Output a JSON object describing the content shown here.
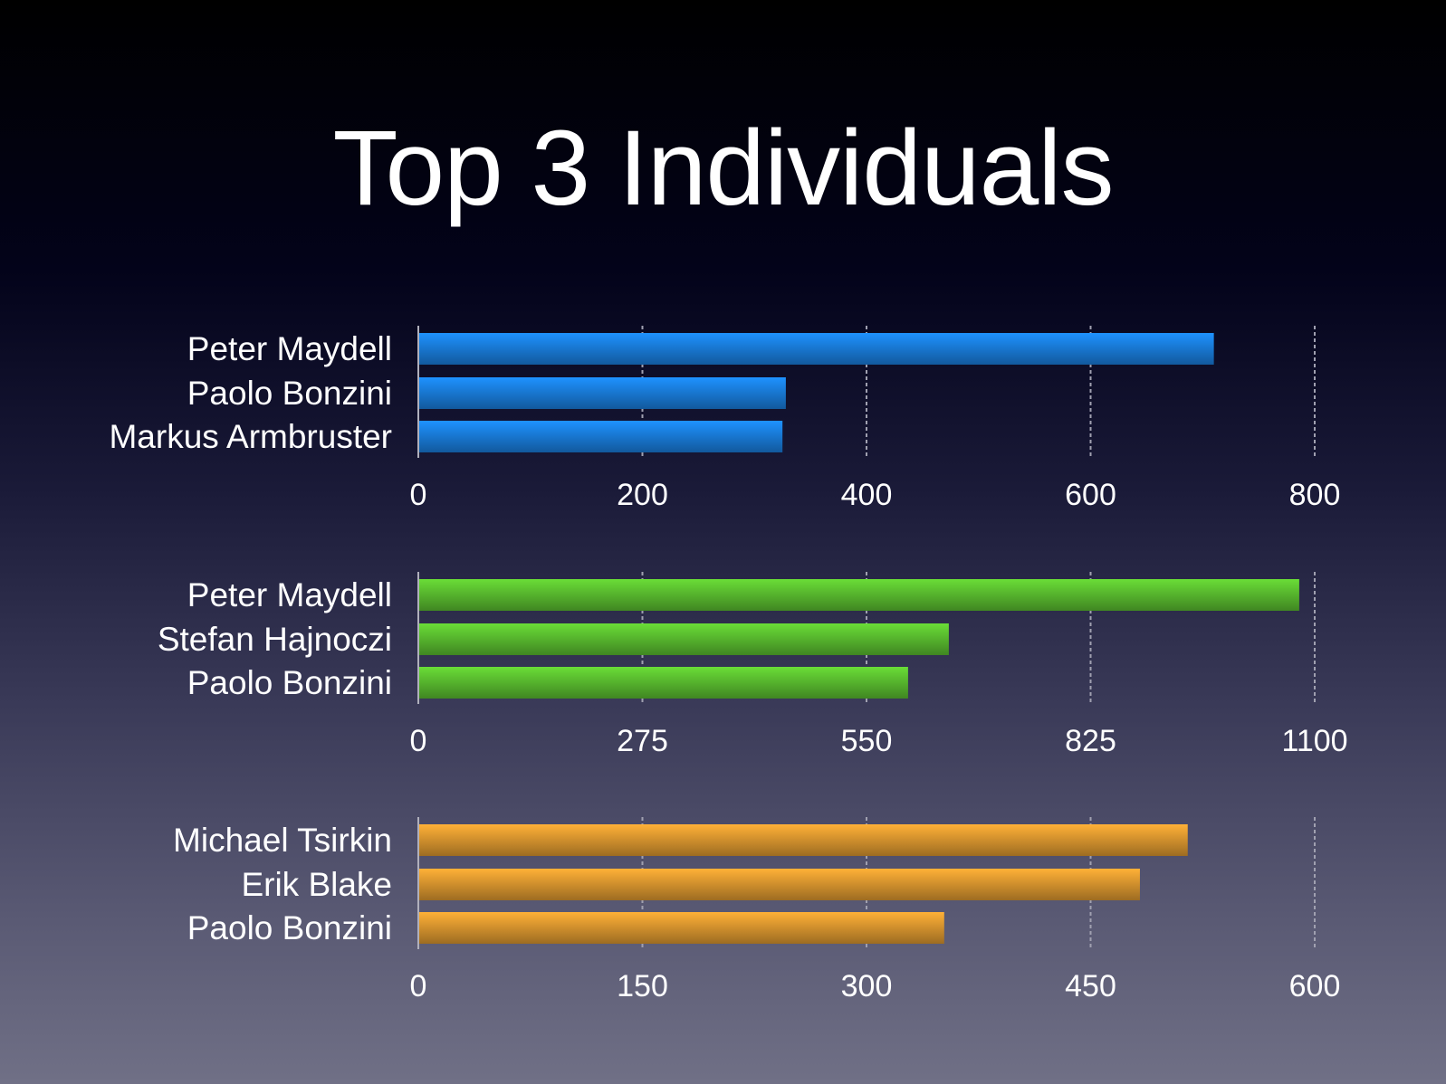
{
  "title": "Top 3 Individuals",
  "chart_data": [
    {
      "type": "bar",
      "orientation": "horizontal",
      "categories": [
        "Peter Maydell",
        "Paolo Bonzini",
        "Markus Armbruster"
      ],
      "values": [
        710,
        328,
        325
      ],
      "xlim": [
        0,
        800
      ],
      "ticks": [
        "0",
        "200",
        "400",
        "600",
        "800"
      ],
      "tick_values": [
        0,
        200,
        400,
        600,
        800
      ],
      "color": "#1a7fe0",
      "grid": true
    },
    {
      "type": "bar",
      "orientation": "horizontal",
      "categories": [
        "Peter Maydell",
        "Stefan Hajnoczi",
        "Paolo Bonzini"
      ],
      "values": [
        1081,
        651,
        601
      ],
      "xlim": [
        0,
        1100
      ],
      "ticks": [
        "0",
        "275",
        "550",
        "825",
        "1100"
      ],
      "tick_values": [
        0,
        275,
        550,
        825,
        1100
      ],
      "color": "#5cc030",
      "grid": true
    },
    {
      "type": "bar",
      "orientation": "horizontal",
      "categories": [
        "Michael Tsirkin",
        "Erik Blake",
        "Paolo Bonzini"
      ],
      "values": [
        515,
        483,
        352
      ],
      "xlim": [
        0,
        600
      ],
      "ticks": [
        "0",
        "150",
        "300",
        "450",
        "600"
      ],
      "tick_values": [
        0,
        150,
        300,
        450,
        600
      ],
      "color": "#e09a30",
      "grid": true
    }
  ]
}
